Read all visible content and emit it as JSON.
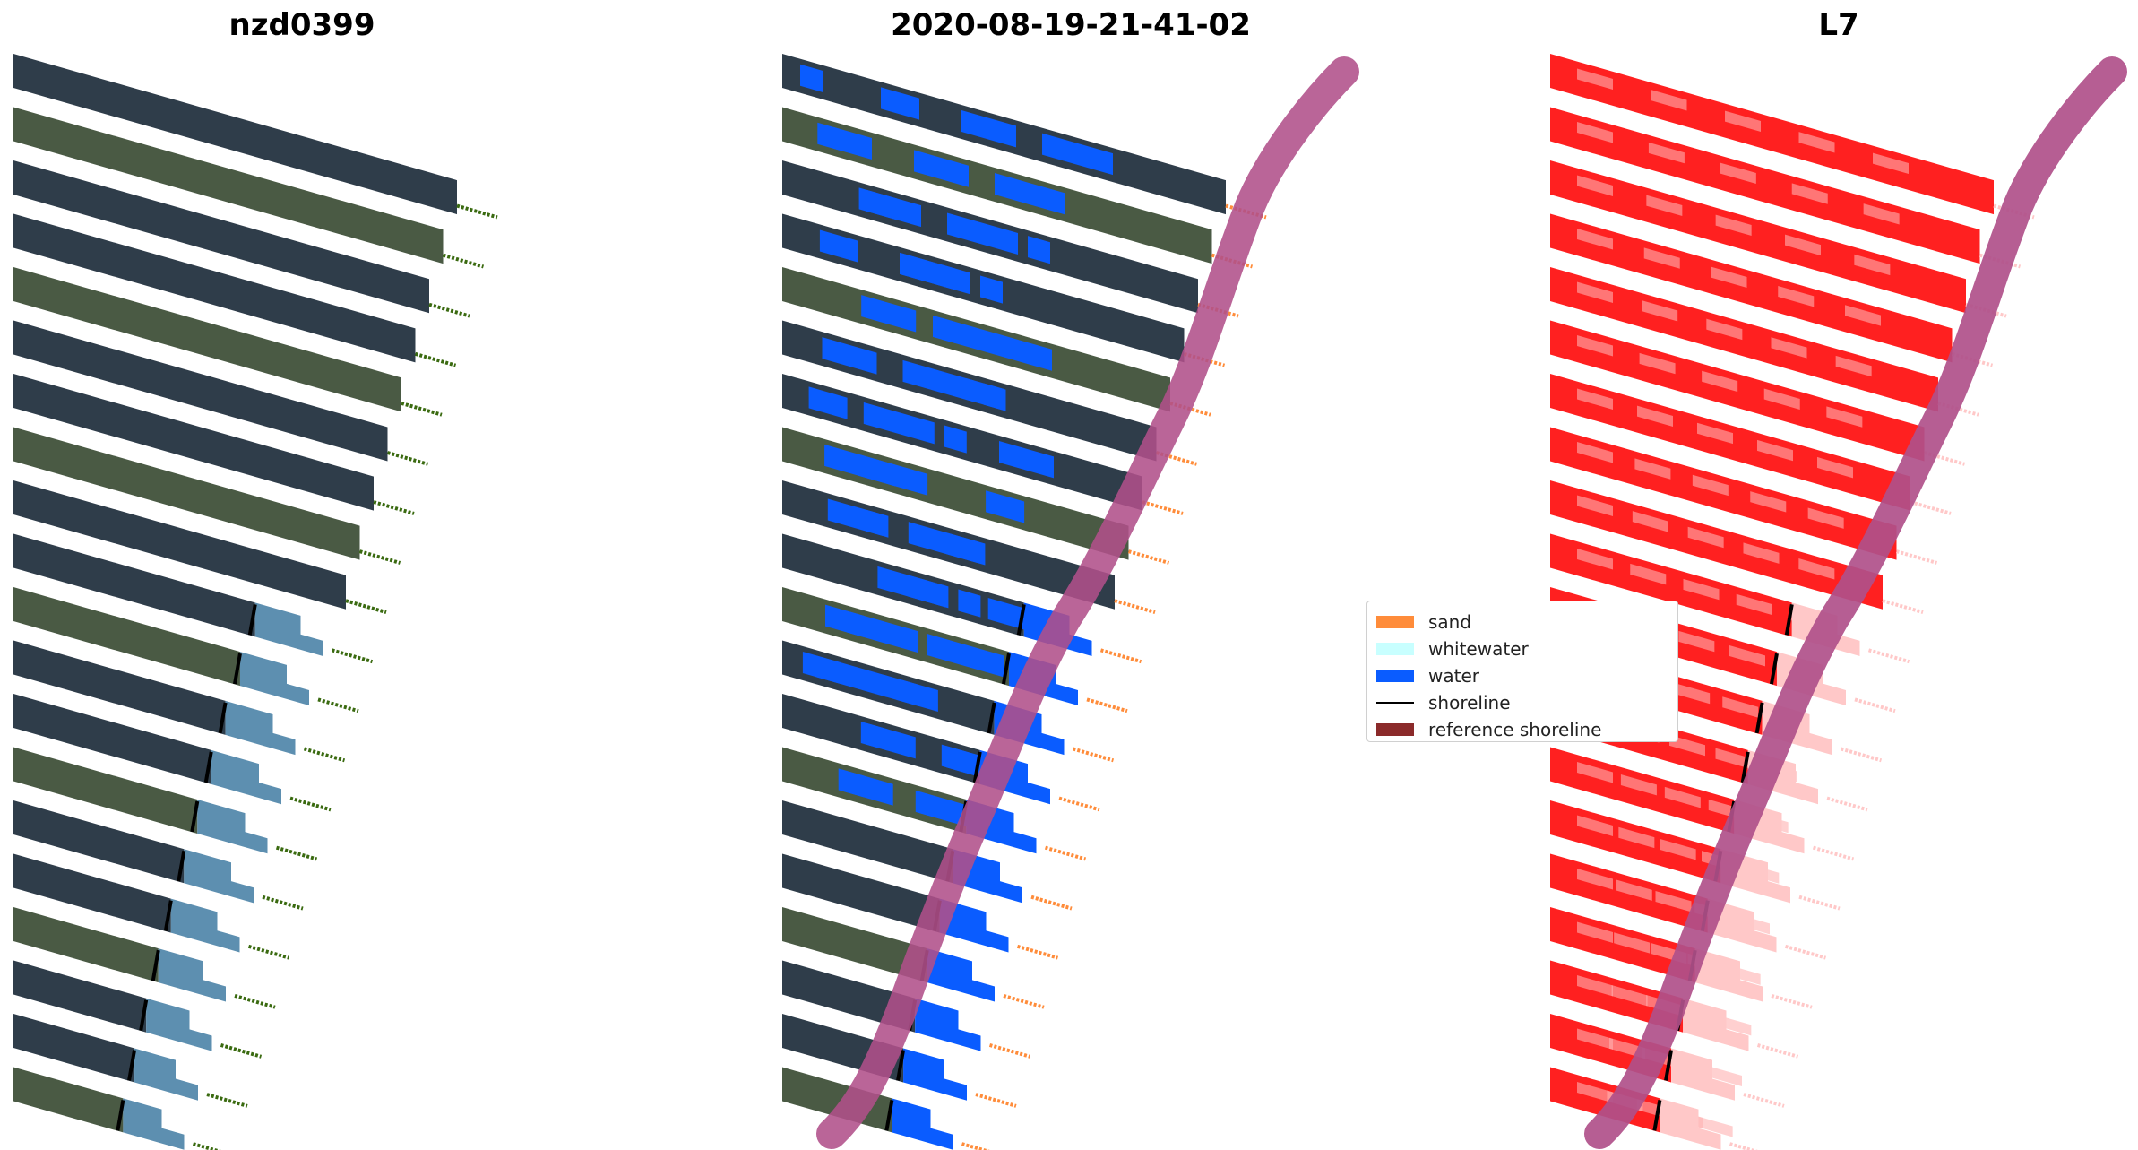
{
  "panels": [
    {
      "title": "nzd0399"
    },
    {
      "title": "2020-08-19-21-41-02"
    },
    {
      "title": "L7"
    }
  ],
  "legend": {
    "items": [
      {
        "label": "sand",
        "color": "#ff8c3a",
        "kind": "patch"
      },
      {
        "label": "whitewater",
        "color": "#c8ffff",
        "kind": "patch"
      },
      {
        "label": "water",
        "color": "#0a5cff",
        "kind": "patch"
      },
      {
        "label": "shoreline",
        "color": "#000000",
        "kind": "line"
      },
      {
        "label": "reference shoreline",
        "color": "#8b2a2a",
        "kind": "patch"
      }
    ]
  },
  "colors": {
    "imagery_dark": "#2f3d4a",
    "imagery_green": "#4a5a44",
    "shallow_water": "#5d8fb0",
    "classified_water": "#0a5cff",
    "mndwi_red": "#ff2020",
    "mndwi_pink": "#ffc8c8",
    "reference_buffer": "#b0508a",
    "sand_orange": "#ff8c3a",
    "dotted_green": "#3a6a10"
  }
}
